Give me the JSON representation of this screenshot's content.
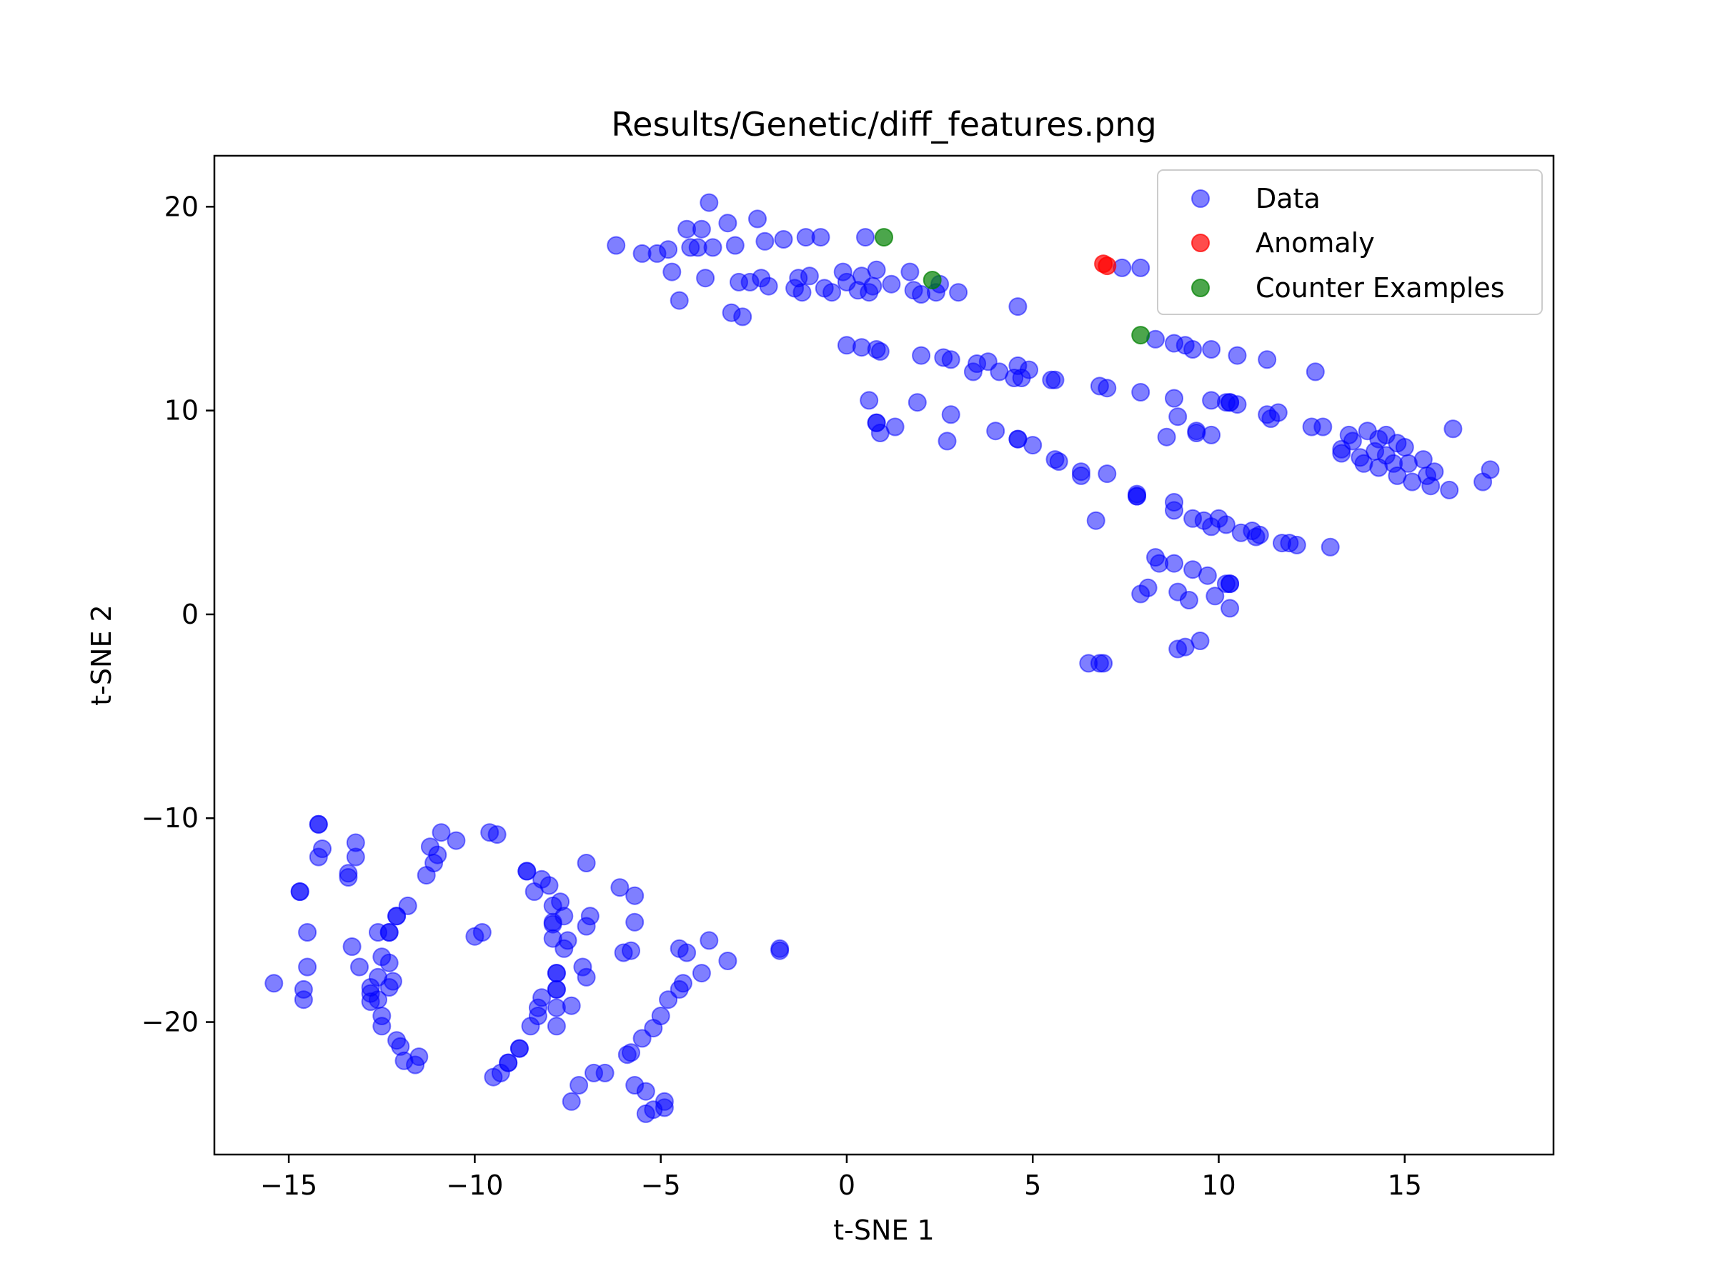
{
  "chart_data": {
    "type": "scatter",
    "title": "Results/Genetic/diff_features.png",
    "xlabel": "t-SNE 1",
    "ylabel": "t-SNE 2",
    "xlim": [
      -17,
      19
    ],
    "ylim": [
      -26.5,
      22.5
    ],
    "xticks": [
      -15,
      -10,
      -5,
      0,
      5,
      10,
      15
    ],
    "yticks": [
      -20,
      -10,
      0,
      10,
      20
    ],
    "tick_labels_x": [
      "−15",
      "−10",
      "−5",
      "0",
      "5",
      "10",
      "15"
    ],
    "tick_labels_y": [
      "−20",
      "−10",
      "0",
      "10",
      "20"
    ],
    "grid": false,
    "legend_position": "top-right",
    "series": [
      {
        "name": "Data",
        "color": "#0000ff",
        "alpha": 0.5,
        "points": [
          [
            -6.2,
            18.1
          ],
          [
            -5.5,
            17.7
          ],
          [
            -5.1,
            17.7
          ],
          [
            -4.8,
            17.9
          ],
          [
            -4.7,
            16.8
          ],
          [
            -4.5,
            15.4
          ],
          [
            -4.3,
            18.9
          ],
          [
            -4.2,
            18.0
          ],
          [
            -4.0,
            18.0
          ],
          [
            -3.9,
            18.9
          ],
          [
            -3.8,
            16.5
          ],
          [
            -3.7,
            20.2
          ],
          [
            -3.6,
            18.0
          ],
          [
            -3.2,
            19.2
          ],
          [
            -3.1,
            14.8
          ],
          [
            -3.0,
            18.1
          ],
          [
            -2.9,
            16.3
          ],
          [
            -2.8,
            14.6
          ],
          [
            -2.6,
            16.3
          ],
          [
            -2.4,
            19.4
          ],
          [
            -2.3,
            16.5
          ],
          [
            -2.2,
            18.3
          ],
          [
            -2.1,
            16.1
          ],
          [
            -1.7,
            18.4
          ],
          [
            -1.4,
            16.0
          ],
          [
            -1.3,
            16.5
          ],
          [
            -1.2,
            15.8
          ],
          [
            -1.1,
            18.5
          ],
          [
            -1.0,
            16.6
          ],
          [
            -0.7,
            18.5
          ],
          [
            -0.6,
            16.0
          ],
          [
            -0.4,
            15.8
          ],
          [
            -0.1,
            16.8
          ],
          [
            0.0,
            16.3
          ],
          [
            0.0,
            13.2
          ],
          [
            0.3,
            15.9
          ],
          [
            0.4,
            16.6
          ],
          [
            0.4,
            13.1
          ],
          [
            0.5,
            18.5
          ],
          [
            0.6,
            15.8
          ],
          [
            0.7,
            16.1
          ],
          [
            0.8,
            16.9
          ],
          [
            0.8,
            13.0
          ],
          [
            0.9,
            12.9
          ],
          [
            1.2,
            16.2
          ],
          [
            1.7,
            16.8
          ],
          [
            1.8,
            15.9
          ],
          [
            2.0,
            15.7
          ],
          [
            2.0,
            12.7
          ],
          [
            2.4,
            15.8
          ],
          [
            2.5,
            16.2
          ],
          [
            2.6,
            12.6
          ],
          [
            2.8,
            12.5
          ],
          [
            3.0,
            15.8
          ],
          [
            3.4,
            11.9
          ],
          [
            3.5,
            12.3
          ],
          [
            3.8,
            12.4
          ],
          [
            4.1,
            11.9
          ],
          [
            4.5,
            11.6
          ],
          [
            4.6,
            12.2
          ],
          [
            4.6,
            15.1
          ],
          [
            4.7,
            11.6
          ],
          [
            4.9,
            12.0
          ],
          [
            5.5,
            11.5
          ],
          [
            5.6,
            11.5
          ],
          [
            0.6,
            10.5
          ],
          [
            0.8,
            9.4
          ],
          [
            0.9,
            8.9
          ],
          [
            1.3,
            9.2
          ],
          [
            1.9,
            10.4
          ],
          [
            2.8,
            9.8
          ],
          [
            2.7,
            8.5
          ],
          [
            4.0,
            9.0
          ],
          [
            4.6,
            8.6
          ],
          [
            5.0,
            8.3
          ],
          [
            5.6,
            7.6
          ],
          [
            5.7,
            7.5
          ],
          [
            6.3,
            7.0
          ],
          [
            6.3,
            6.8
          ],
          [
            6.7,
            4.6
          ],
          [
            6.8,
            11.2
          ],
          [
            7.0,
            11.1
          ],
          [
            7.0,
            6.9
          ],
          [
            7.4,
            17.0
          ],
          [
            7.8,
            5.9
          ],
          [
            7.8,
            5.8
          ],
          [
            7.9,
            17.0
          ],
          [
            7.9,
            10.9
          ],
          [
            8.3,
            13.5
          ],
          [
            8.6,
            8.7
          ],
          [
            8.8,
            13.3
          ],
          [
            8.8,
            10.6
          ],
          [
            8.8,
            5.5
          ],
          [
            8.8,
            5.1
          ],
          [
            8.9,
            9.7
          ],
          [
            9.1,
            13.2
          ],
          [
            9.3,
            13.0
          ],
          [
            9.4,
            8.9
          ],
          [
            9.4,
            9.0
          ],
          [
            9.3,
            4.7
          ],
          [
            9.6,
            4.6
          ],
          [
            9.8,
            10.5
          ],
          [
            9.8,
            13.0
          ],
          [
            9.8,
            8.8
          ],
          [
            9.8,
            4.3
          ],
          [
            10.0,
            4.7
          ],
          [
            10.2,
            10.4
          ],
          [
            10.2,
            4.4
          ],
          [
            10.3,
            10.4
          ],
          [
            10.5,
            10.3
          ],
          [
            10.5,
            12.7
          ],
          [
            10.6,
            4.0
          ],
          [
            10.9,
            4.1
          ],
          [
            11.0,
            3.8
          ],
          [
            11.1,
            3.9
          ],
          [
            11.3,
            12.5
          ],
          [
            11.3,
            9.8
          ],
          [
            11.4,
            9.6
          ],
          [
            11.6,
            9.9
          ],
          [
            11.7,
            3.5
          ],
          [
            11.9,
            3.5
          ],
          [
            12.1,
            3.4
          ],
          [
            12.5,
            9.2
          ],
          [
            12.6,
            11.9
          ],
          [
            12.8,
            9.2
          ],
          [
            13.0,
            3.3
          ],
          [
            13.3,
            7.9
          ],
          [
            13.3,
            8.1
          ],
          [
            13.5,
            8.8
          ],
          [
            13.6,
            8.5
          ],
          [
            13.8,
            7.7
          ],
          [
            13.9,
            7.4
          ],
          [
            14.0,
            9.0
          ],
          [
            14.2,
            8.0
          ],
          [
            14.3,
            8.6
          ],
          [
            14.3,
            7.2
          ],
          [
            14.5,
            8.8
          ],
          [
            14.5,
            7.8
          ],
          [
            14.7,
            7.4
          ],
          [
            14.8,
            8.4
          ],
          [
            14.8,
            6.8
          ],
          [
            15.0,
            8.2
          ],
          [
            15.1,
            7.4
          ],
          [
            15.2,
            6.5
          ],
          [
            15.5,
            7.6
          ],
          [
            15.6,
            6.8
          ],
          [
            15.7,
            6.3
          ],
          [
            15.8,
            7.0
          ],
          [
            16.2,
            6.1
          ],
          [
            16.3,
            9.1
          ],
          [
            17.1,
            6.5
          ],
          [
            17.3,
            7.1
          ],
          [
            8.3,
            2.8
          ],
          [
            8.4,
            2.5
          ],
          [
            8.1,
            1.3
          ],
          [
            7.9,
            1.0
          ],
          [
            8.8,
            2.5
          ],
          [
            8.9,
            1.1
          ],
          [
            9.2,
            0.7
          ],
          [
            9.3,
            2.2
          ],
          [
            9.7,
            1.9
          ],
          [
            9.9,
            0.9
          ],
          [
            10.2,
            1.5
          ],
          [
            10.3,
            1.5
          ],
          [
            10.3,
            0.3
          ],
          [
            8.9,
            -1.7
          ],
          [
            9.1,
            -1.6
          ],
          [
            9.5,
            -1.3
          ],
          [
            6.5,
            -2.4
          ],
          [
            6.8,
            -2.4
          ],
          [
            6.9,
            -2.4
          ],
          [
            -15.4,
            -18.1
          ],
          [
            -14.7,
            -13.6
          ],
          [
            -14.6,
            -18.4
          ],
          [
            -14.6,
            -18.9
          ],
          [
            -14.5,
            -15.6
          ],
          [
            -14.5,
            -17.3
          ],
          [
            -14.2,
            -10.3
          ],
          [
            -14.2,
            -11.9
          ],
          [
            -14.1,
            -11.5
          ],
          [
            -13.4,
            -12.7
          ],
          [
            -13.4,
            -12.9
          ],
          [
            -13.3,
            -16.3
          ],
          [
            -13.2,
            -11.2
          ],
          [
            -13.2,
            -11.9
          ],
          [
            -13.1,
            -17.3
          ],
          [
            -12.8,
            -18.3
          ],
          [
            -12.8,
            -18.6
          ],
          [
            -12.8,
            -19.0
          ],
          [
            -12.6,
            -15.6
          ],
          [
            -12.6,
            -17.8
          ],
          [
            -12.6,
            -18.9
          ],
          [
            -12.5,
            -19.7
          ],
          [
            -12.5,
            -20.2
          ],
          [
            -12.5,
            -16.8
          ],
          [
            -12.3,
            -18.3
          ],
          [
            -12.3,
            -17.1
          ],
          [
            -12.3,
            -15.6
          ],
          [
            -12.2,
            -18.0
          ],
          [
            -12.1,
            -14.8
          ],
          [
            -12.1,
            -20.9
          ],
          [
            -12.0,
            -21.2
          ],
          [
            -11.9,
            -21.9
          ],
          [
            -11.8,
            -14.3
          ],
          [
            -11.6,
            -22.1
          ],
          [
            -11.5,
            -21.7
          ],
          [
            -11.3,
            -12.8
          ],
          [
            -11.2,
            -11.4
          ],
          [
            -11.1,
            -12.2
          ],
          [
            -11.0,
            -11.8
          ],
          [
            -10.9,
            -10.7
          ],
          [
            -10.5,
            -11.1
          ],
          [
            -10.0,
            -15.8
          ],
          [
            -9.8,
            -15.6
          ],
          [
            -9.6,
            -10.7
          ],
          [
            -9.4,
            -10.8
          ],
          [
            -9.5,
            -22.7
          ],
          [
            -9.3,
            -22.5
          ],
          [
            -9.1,
            -22.0
          ],
          [
            -8.8,
            -21.3
          ],
          [
            -8.6,
            -12.6
          ],
          [
            -8.5,
            -20.2
          ],
          [
            -8.4,
            -13.6
          ],
          [
            -8.3,
            -19.7
          ],
          [
            -8.2,
            -13.0
          ],
          [
            -8.2,
            -18.8
          ],
          [
            -8.0,
            -13.3
          ],
          [
            -7.9,
            -14.3
          ],
          [
            -7.9,
            -15.9
          ],
          [
            -7.9,
            -15.1
          ],
          [
            -7.8,
            -17.6
          ],
          [
            -7.8,
            -18.4
          ],
          [
            -7.8,
            -19.3
          ],
          [
            -7.8,
            -20.2
          ],
          [
            -7.7,
            -14.1
          ],
          [
            -7.6,
            -14.8
          ],
          [
            -7.6,
            -16.4
          ],
          [
            -7.5,
            -16.0
          ],
          [
            -7.4,
            -19.2
          ],
          [
            -7.4,
            -23.9
          ],
          [
            -7.0,
            -12.2
          ],
          [
            -7.0,
            -15.3
          ],
          [
            -7.1,
            -17.3
          ],
          [
            -7.0,
            -17.8
          ],
          [
            -6.9,
            -14.8
          ],
          [
            -6.8,
            -22.5
          ],
          [
            -6.5,
            -22.5
          ],
          [
            -6.1,
            -13.4
          ],
          [
            -6.0,
            -16.6
          ],
          [
            -5.9,
            -21.6
          ],
          [
            -5.8,
            -21.5
          ],
          [
            -5.8,
            -16.5
          ],
          [
            -5.7,
            -15.1
          ],
          [
            -5.7,
            -13.8
          ],
          [
            -5.7,
            -23.1
          ],
          [
            -5.5,
            -20.8
          ],
          [
            -5.4,
            -23.4
          ],
          [
            -5.4,
            -24.5
          ],
          [
            -5.2,
            -24.3
          ],
          [
            -5.2,
            -20.3
          ],
          [
            -5.0,
            -19.7
          ],
          [
            -4.9,
            -23.9
          ],
          [
            -4.9,
            -24.2
          ],
          [
            -4.8,
            -18.9
          ],
          [
            -4.5,
            -16.4
          ],
          [
            -4.5,
            -18.4
          ],
          [
            -4.4,
            -18.1
          ],
          [
            -4.3,
            -16.6
          ],
          [
            -3.9,
            -17.6
          ],
          [
            -3.7,
            -16.0
          ],
          [
            -3.2,
            -17.0
          ],
          [
            -1.8,
            -16.4
          ]
        ]
      },
      {
        "name": "Anomaly",
        "color": "#ff0000",
        "alpha": 0.7,
        "points": [
          [
            6.9,
            17.2
          ],
          [
            7.0,
            17.1
          ]
        ]
      },
      {
        "name": "Counter Examples",
        "color": "#008000",
        "alpha": 0.7,
        "points": [
          [
            1.0,
            18.5
          ],
          [
            2.3,
            16.4
          ],
          [
            7.9,
            13.7
          ]
        ]
      }
    ],
    "duplicate_dark_points": [
      [
        -14.7,
        -13.6
      ],
      [
        -14.2,
        -10.3
      ],
      [
        -12.3,
        -15.6
      ],
      [
        -12.1,
        -14.8
      ],
      [
        -8.6,
        -12.6
      ],
      [
        -8.3,
        -19.3
      ],
      [
        -7.9,
        -15.2
      ],
      [
        -7.8,
        -17.6
      ],
      [
        -7.8,
        -18.4
      ],
      [
        -9.1,
        -22.0
      ],
      [
        -8.8,
        -21.3
      ],
      [
        -7.2,
        -23.1
      ],
      [
        -1.8,
        -16.5
      ],
      [
        0.8,
        9.4
      ],
      [
        4.6,
        8.6
      ],
      [
        10.3,
        10.4
      ],
      [
        10.3,
        1.5
      ],
      [
        7.8,
        5.8
      ]
    ]
  }
}
